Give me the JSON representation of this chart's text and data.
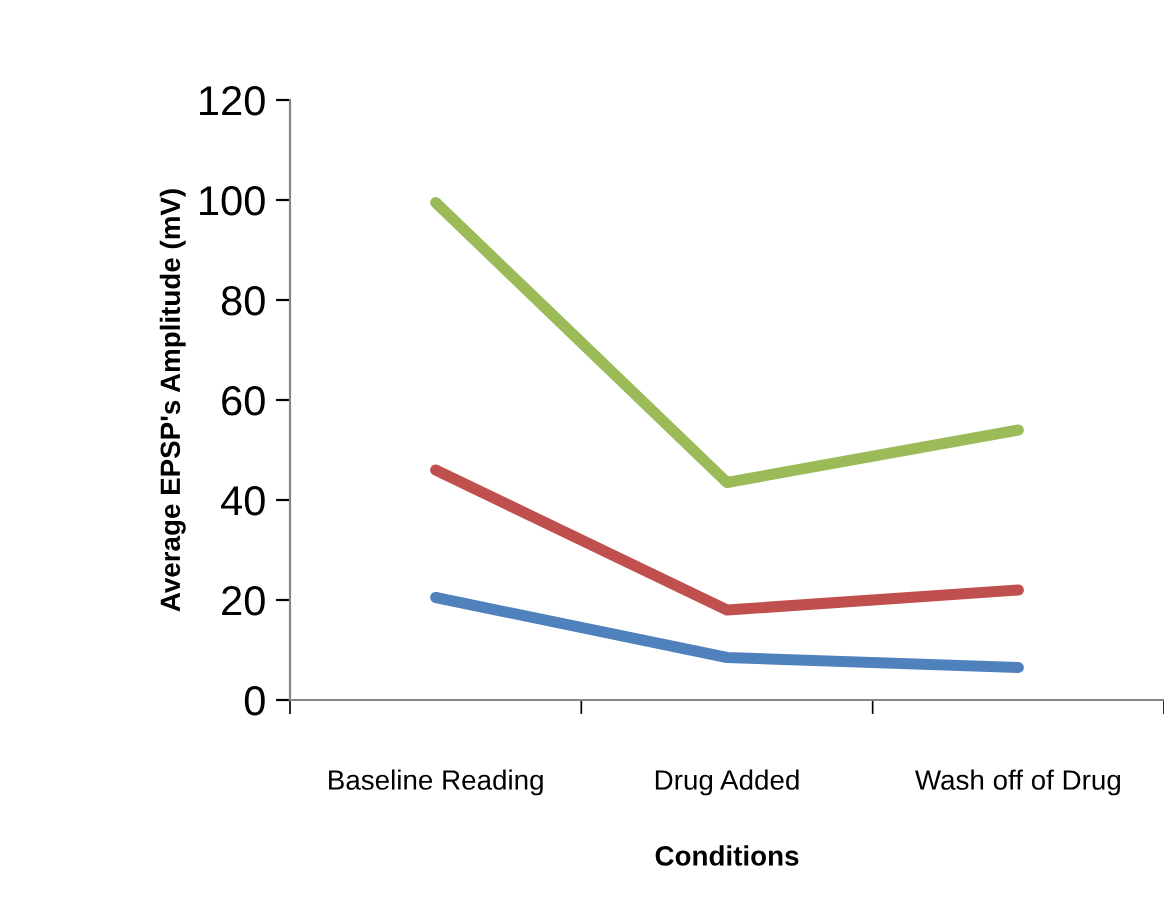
{
  "chart_data": {
    "type": "line",
    "xlabel": "Conditions",
    "ylabel": "Average EPSP's Amplitude (mV)",
    "categories": [
      "Baseline Reading",
      "Drug Added",
      "Wash off of Drug"
    ],
    "series": [
      {
        "color": "#4f81bd",
        "values": [
          20.5,
          8.5,
          6.5
        ]
      },
      {
        "color": "#c0504d",
        "values": [
          46,
          18,
          22
        ]
      },
      {
        "color": "#9bbb59",
        "values": [
          99.5,
          43.5,
          54
        ]
      }
    ],
    "ylim": [
      0,
      120
    ],
    "yticks": [
      0,
      20,
      40,
      60,
      80,
      100,
      120
    ],
    "grid": false,
    "marker": "none",
    "line_style": "solid"
  }
}
